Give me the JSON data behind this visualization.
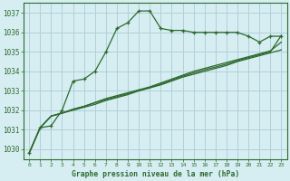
{
  "title": "Graphe pression niveau de la mer (hPa)",
  "background_color": "#d6eef2",
  "grid_color": "#b0d0d8",
  "line_color": "#2d6a2d",
  "text_color": "#2d6a2d",
  "xlim": [
    -0.5,
    23.5
  ],
  "ylim": [
    1029.5,
    1037.5
  ],
  "yticks": [
    1030,
    1031,
    1032,
    1033,
    1034,
    1035,
    1036,
    1037
  ],
  "xticks": [
    0,
    1,
    2,
    3,
    4,
    5,
    6,
    7,
    8,
    9,
    10,
    11,
    12,
    13,
    14,
    15,
    16,
    17,
    18,
    19,
    20,
    21,
    22,
    23
  ],
  "s1_x": [
    0,
    1,
    2,
    3,
    4,
    5,
    6,
    7,
    8,
    9,
    10,
    11,
    12,
    13,
    14,
    15,
    16,
    17,
    18,
    19,
    20,
    21,
    22,
    23
  ],
  "s1_y": [
    1029.8,
    1031.1,
    1031.2,
    1032.0,
    1033.5,
    1033.6,
    1034.0,
    1035.0,
    1036.2,
    1036.5,
    1037.1,
    1037.1,
    1036.2,
    1036.1,
    1036.1,
    1036.0,
    1036.0,
    1036.0,
    1036.0,
    1036.0,
    1035.8,
    1035.5,
    1035.8,
    1035.8
  ],
  "s2_x": [
    0,
    1,
    2,
    3,
    4,
    5,
    6,
    7,
    8,
    9,
    10,
    11,
    12,
    13,
    14,
    15,
    16,
    17,
    18,
    19,
    20,
    21,
    22,
    23
  ],
  "s2_y": [
    1029.8,
    1031.1,
    1031.7,
    1031.85,
    1032.0,
    1032.15,
    1032.3,
    1032.5,
    1032.65,
    1032.8,
    1033.0,
    1033.15,
    1033.3,
    1033.5,
    1033.7,
    1033.85,
    1034.0,
    1034.15,
    1034.3,
    1034.5,
    1034.65,
    1034.8,
    1034.95,
    1035.1
  ],
  "s3_x": [
    0,
    1,
    2,
    3,
    4,
    5,
    6,
    7,
    8,
    9,
    10,
    11,
    12,
    13,
    14,
    15,
    16,
    17,
    18,
    19,
    20,
    21,
    22,
    23
  ],
  "s3_y": [
    1029.8,
    1031.1,
    1031.7,
    1031.85,
    1032.05,
    1032.2,
    1032.4,
    1032.6,
    1032.75,
    1032.9,
    1033.05,
    1033.2,
    1033.4,
    1033.6,
    1033.8,
    1034.0,
    1034.15,
    1034.3,
    1034.45,
    1034.6,
    1034.75,
    1034.9,
    1035.05,
    1035.5
  ],
  "s4_x": [
    0,
    1,
    2,
    3,
    4,
    5,
    6,
    7,
    8,
    9,
    10,
    11,
    12,
    13,
    14,
    15,
    16,
    17,
    18,
    19,
    20,
    21,
    22,
    23
  ],
  "s4_y": [
    1029.8,
    1031.1,
    1031.7,
    1031.85,
    1032.05,
    1032.2,
    1032.38,
    1032.55,
    1032.7,
    1032.85,
    1033.0,
    1033.15,
    1033.35,
    1033.55,
    1033.75,
    1033.92,
    1034.08,
    1034.22,
    1034.37,
    1034.55,
    1034.7,
    1034.85,
    1035.0,
    1035.85
  ]
}
